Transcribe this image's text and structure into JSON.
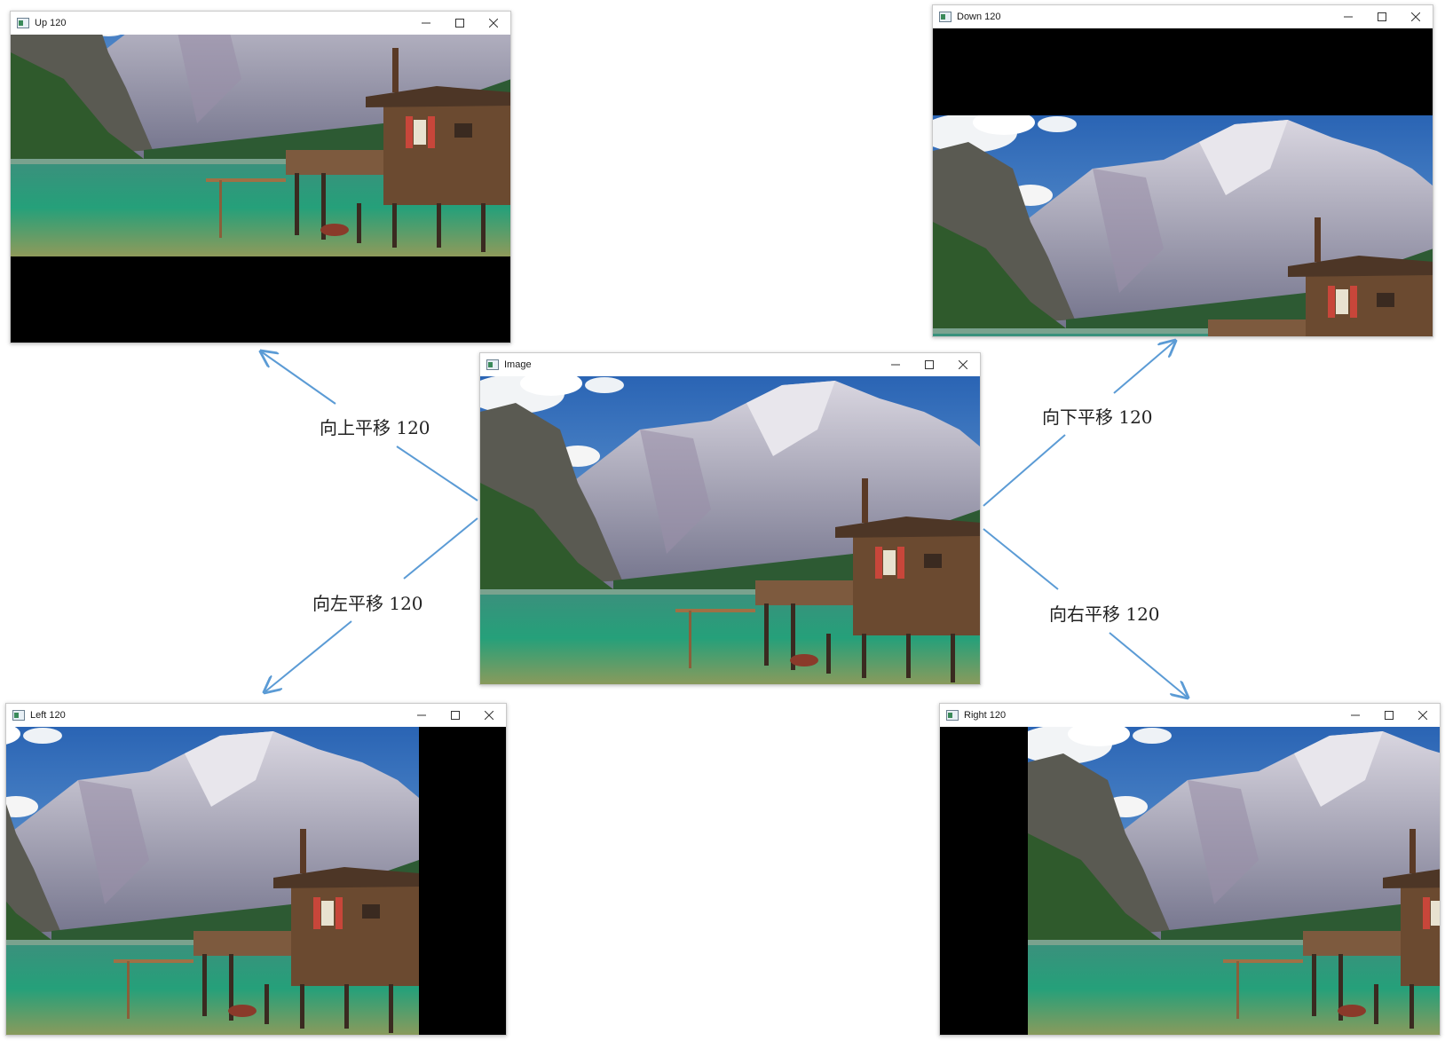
{
  "windows": {
    "up": {
      "title": "Up 120"
    },
    "down": {
      "title": "Down 120"
    },
    "image": {
      "title": "Image"
    },
    "left": {
      "title": "Left 120"
    },
    "right": {
      "title": "Right 120"
    }
  },
  "labels": {
    "up": "向上平移 120",
    "down": "向下平移 120",
    "left": "向左平移 120",
    "right": "向右平移 120"
  },
  "colors": {
    "arrow": "#5b9bd5"
  },
  "icons": {
    "app": "app-window-icon",
    "minimize": "minimize-icon",
    "maximize": "maximize-icon",
    "close": "close-icon"
  }
}
